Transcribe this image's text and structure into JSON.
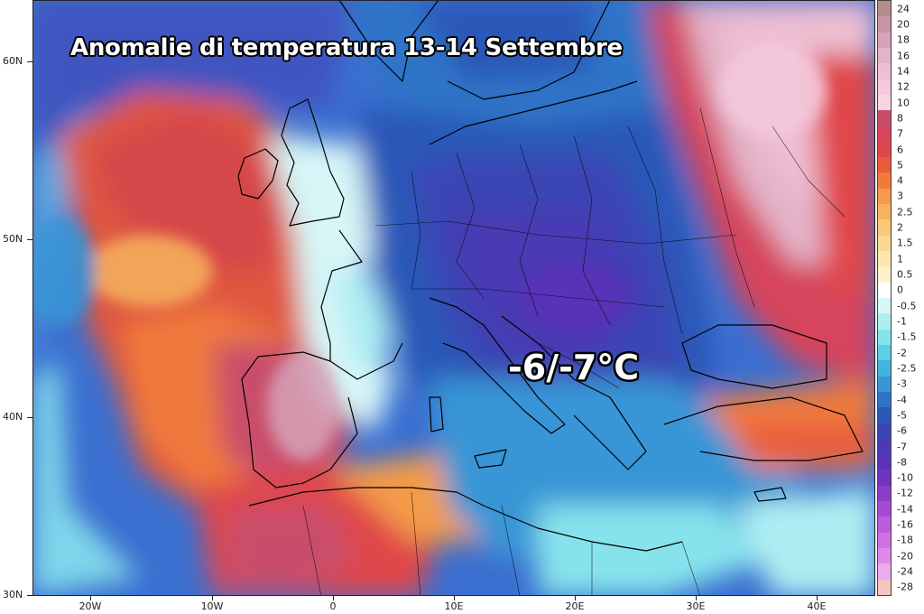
{
  "map": {
    "title": "Anomalie di temperatura 13-14 Settembre",
    "annotation": "-6/-7°C",
    "lat_labels": [
      "60N",
      "50N",
      "40N",
      "30N"
    ],
    "lon_labels": [
      "20W",
      "10W",
      "0",
      "10E",
      "20E",
      "30E",
      "40E"
    ]
  },
  "colorbar": {
    "levels": [
      "24",
      "20",
      "18",
      "16",
      "14",
      "12",
      "10",
      "8",
      "7",
      "6",
      "5",
      "4",
      "3",
      "2.5",
      "2",
      "1.5",
      "1",
      "0.5",
      "0",
      "-0.5",
      "-1",
      "-1.5",
      "-2",
      "-2.5",
      "-3",
      "-4",
      "-5",
      "-6",
      "-7",
      "-8",
      "-10",
      "-12",
      "-14",
      "-16",
      "-18",
      "-20",
      "-24",
      "-28"
    ],
    "colors": [
      "#b58b8b",
      "#c795a5",
      "#d6a3b9",
      "#e3b3c8",
      "#eebfd3",
      "#f4c9dc",
      "#f9d3e4",
      "#c94d6a",
      "#d6455c",
      "#e0474a",
      "#ea5b3c",
      "#f07a3c",
      "#f39b4a",
      "#f6b35d",
      "#f9c878",
      "#fbd993",
      "#fce6ae",
      "#fdf1cc",
      "#ffffff",
      "#d7f6f7",
      "#aeeef2",
      "#86e3ec",
      "#5ccfe6",
      "#3fb4de",
      "#3896d6",
      "#2f74c7",
      "#2c58b8",
      "#3a45b4",
      "#4a3bb3",
      "#5a33b8",
      "#7034be",
      "#8a3dc8",
      "#a34bd3",
      "#bb5cdc",
      "#cf70e3",
      "#df88ea",
      "#ecaaef",
      "#f3c6c0"
    ]
  }
}
